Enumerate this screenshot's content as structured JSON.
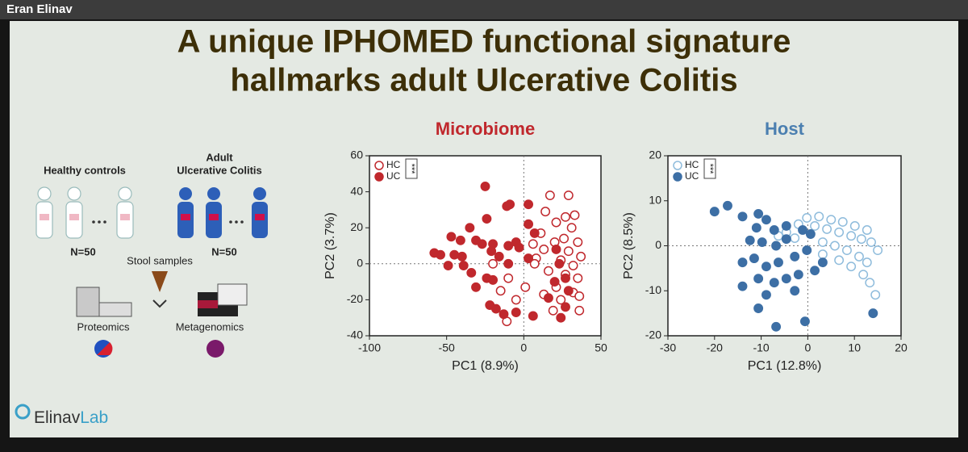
{
  "header": {
    "speaker": "Eran Elinav"
  },
  "slide": {
    "title_lines": [
      "A unique IPHOMED functional signature",
      "hallmarks adult Ulcerative Colitis"
    ],
    "diagram": {
      "healthy_label": "Healthy controls",
      "uc_label_lines": [
        "Adult",
        "Ulcerative Colitis"
      ],
      "n_healthy": "N=50",
      "n_uc": "N=50",
      "stool": "Stool samples",
      "proteomics": "Proteomics",
      "metagenomics": "Metagenomics"
    },
    "logo": [
      "Elinav",
      "Lab"
    ]
  },
  "chart_data": [
    {
      "type": "scatter",
      "title": "Microbiome",
      "xlabel": "PC1 (8.9%)",
      "ylabel": "PC2 (3.7%)",
      "significance": "***",
      "xlim": [
        -100,
        50
      ],
      "ylim": [
        -40,
        60
      ],
      "xticks": [
        -100,
        -50,
        0,
        50
      ],
      "yticks": [
        -40,
        -20,
        0,
        20,
        40,
        60
      ],
      "series": [
        {
          "name": "HC",
          "color": "#c0282d",
          "filled": false,
          "x": [
            17,
            29,
            14,
            27,
            33,
            21,
            31,
            11,
            26,
            35,
            6,
            20,
            13,
            29,
            37,
            8,
            24,
            32,
            16,
            27,
            35,
            21,
            32,
            13,
            24,
            -10,
            -15,
            -20,
            -11,
            -5,
            7,
            36,
            19,
            36,
            1
          ],
          "y": [
            38,
            38,
            29,
            26,
            27,
            23,
            20,
            17,
            14,
            12,
            11,
            12,
            8,
            7,
            4,
            3,
            2,
            -1,
            -4,
            -6,
            -8,
            -13,
            -16,
            -17,
            -20,
            -8,
            -15,
            0,
            -32,
            -20,
            0,
            -18,
            -26,
            -26,
            -13
          ]
        },
        {
          "name": "UC",
          "color": "#c0282d",
          "filled": true,
          "x": [
            -25,
            -11,
            -9,
            3,
            -24,
            -35,
            -47,
            -41,
            -58,
            -54,
            -45,
            -40,
            -31,
            -27,
            -20,
            -21,
            -16,
            -10,
            -5,
            -3,
            -39,
            -34,
            -49,
            -24,
            -20,
            -31,
            -22,
            -18,
            -13,
            -5,
            6,
            16,
            23,
            27,
            20,
            29,
            24,
            3,
            7,
            3,
            -10,
            21,
            27
          ],
          "y": [
            43,
            32,
            33,
            33,
            25,
            20,
            15,
            13,
            6,
            5,
            5,
            4,
            13,
            11,
            11,
            7,
            4,
            10,
            12,
            9,
            -1,
            -5,
            -1,
            -8,
            -9,
            -13,
            -23,
            -25,
            -28,
            -27,
            -29,
            -19,
            0,
            -8,
            -10,
            -15,
            -30,
            22,
            17,
            3,
            0,
            8,
            -24
          ]
        }
      ]
    },
    {
      "type": "scatter",
      "title": "Host",
      "xlabel": "PC1 (12.8%)",
      "ylabel": "PC2 (8.5%)",
      "significance": "***",
      "xlim": [
        -30,
        20
      ],
      "ylim": [
        -20,
        20
      ],
      "xticks": [
        -30,
        -20,
        -10,
        0,
        10,
        20
      ],
      "yticks": [
        -20,
        -10,
        0,
        10,
        20
      ],
      "series": [
        {
          "name": "HC",
          "color": "#8fbcdc",
          "filled": false,
          "x": [
            -0.2,
            2.4,
            5,
            7.5,
            10.1,
            12.7,
            1.5,
            4.1,
            6.7,
            9.3,
            11.5,
            13.6,
            -2,
            -4.6,
            -2.8,
            3.2,
            5.8,
            8.4,
            11,
            12.7,
            11.9,
            13.3,
            14.5,
            9.3,
            6.7,
            3.2,
            -6.3,
            15
          ],
          "y": [
            6.2,
            6.5,
            5.8,
            5.3,
            4.4,
            3.5,
            4.4,
            3.7,
            3,
            2.2,
            1.5,
            0.8,
            4.8,
            3,
            1.7,
            0.8,
            0,
            -1,
            -2.4,
            -3.7,
            -6.4,
            -8.2,
            -10.9,
            -4.6,
            -3.2,
            -1.9,
            2.2,
            -1
          ]
        },
        {
          "name": "UC",
          "color": "#3d6fa5",
          "filled": true,
          "x": [
            -20,
            -17.2,
            -14,
            -10.6,
            -8.9,
            -11,
            -7.2,
            -4.6,
            -12.4,
            -9.8,
            -6.8,
            -4.6,
            -11.5,
            -14,
            -8.9,
            -6.3,
            -2.8,
            -0.2,
            -10.6,
            -7.2,
            -4.6,
            -2,
            1.5,
            3.2,
            -14,
            -8.9,
            -2.8,
            -10.6,
            -6.8,
            -0.6,
            14,
            0.6,
            -1.1
          ],
          "y": [
            7.6,
            8.9,
            6.5,
            7.1,
            5.8,
            4,
            3.5,
            4.4,
            1.2,
            0.8,
            0,
            1.5,
            -2.8,
            -3.7,
            -4.6,
            -3.7,
            -2.4,
            -1,
            -7.3,
            -8.2,
            -7.3,
            -6.4,
            -5.5,
            -3.7,
            -9,
            -10.9,
            -10,
            -13.9,
            -18,
            -16.8,
            -15,
            2.6,
            3.5
          ]
        }
      ]
    }
  ]
}
